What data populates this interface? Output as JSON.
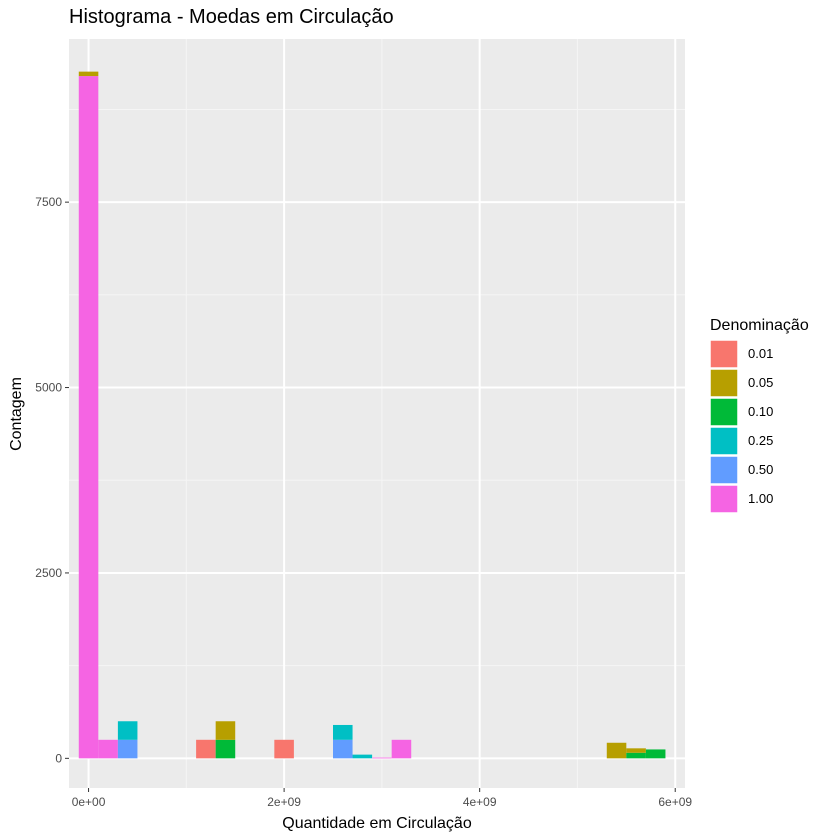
{
  "chart_data": {
    "type": "bar",
    "title": "Histograma - Moedas em Circulação",
    "xlabel": "Quantidade em Circulação",
    "ylabel": "Contagem",
    "xlim": [
      -200000000,
      6100000000
    ],
    "ylim": [
      -400,
      9700
    ],
    "x_ticks": [
      {
        "value": 0,
        "label": "0e+00"
      },
      {
        "value": 2000000000,
        "label": "2e+09"
      },
      {
        "value": 4000000000,
        "label": "4e+09"
      },
      {
        "value": 6000000000,
        "label": "6e+09"
      }
    ],
    "y_ticks": [
      {
        "value": 0,
        "label": "0"
      },
      {
        "value": 2500,
        "label": "2500"
      },
      {
        "value": 5000,
        "label": "5000"
      },
      {
        "value": 7500,
        "label": "7500"
      }
    ],
    "bin_width": 200000000,
    "bin_centers": [
      0,
      200000000,
      400000000,
      1200000000,
      1400000000,
      2000000000,
      2600000000,
      2800000000,
      3000000000,
      3200000000,
      5400000000,
      5600000000,
      5800000000
    ],
    "stack_order": [
      "1.00",
      "0.50",
      "0.25",
      "0.10",
      "0.05",
      "0.01"
    ],
    "series": [
      {
        "name": "0.01",
        "color": "#F8766D",
        "values": [
          0,
          0,
          0,
          250,
          0,
          250,
          0,
          0,
          0,
          0,
          0,
          0,
          0
        ]
      },
      {
        "name": "0.05",
        "color": "#B79F00",
        "values": [
          60,
          0,
          0,
          0,
          250,
          0,
          0,
          0,
          0,
          0,
          210,
          60,
          0
        ]
      },
      {
        "name": "0.10",
        "color": "#00BA38",
        "values": [
          0,
          0,
          0,
          0,
          250,
          0,
          0,
          0,
          0,
          0,
          0,
          75,
          120
        ]
      },
      {
        "name": "0.25",
        "color": "#00BFC4",
        "values": [
          0,
          0,
          250,
          0,
          0,
          0,
          200,
          50,
          0,
          0,
          0,
          0,
          0
        ]
      },
      {
        "name": "0.50",
        "color": "#619CFF",
        "values": [
          0,
          0,
          250,
          0,
          0,
          0,
          250,
          0,
          0,
          0,
          0,
          0,
          0
        ]
      },
      {
        "name": "1.00",
        "color": "#F564E3",
        "values": [
          9200,
          250,
          0,
          0,
          0,
          0,
          0,
          0,
          10,
          250,
          0,
          0,
          0
        ]
      }
    ],
    "legend": {
      "title": "Denominação",
      "position": "right"
    },
    "grid": true
  }
}
